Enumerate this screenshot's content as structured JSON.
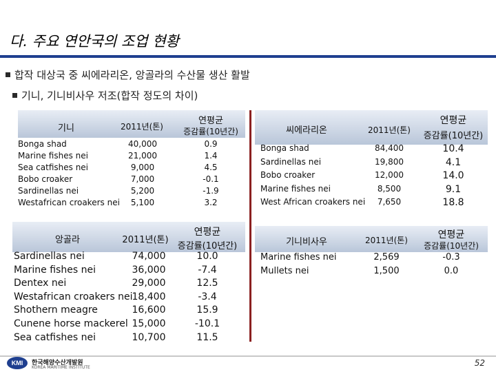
{
  "title": "다. 주요 연안국의 조업 현황",
  "bullets": [
    "합작 대상국 중 씨에라리온, 앙골라의 수산물 생산 활발",
    "기니, 기니비사우 저조(합작 정도의 차이)"
  ],
  "guinea": {
    "name": "기니",
    "col_prod": "2011년(톤)",
    "col_growth": [
      "연평균",
      "증감률(10년간)"
    ],
    "rows": [
      {
        "species": "Bonga shad",
        "prod": "40,000",
        "growth": "0.9"
      },
      {
        "species": "Marine fishes nei",
        "prod": "21,000",
        "growth": "1.4"
      },
      {
        "species": "Sea catfishes nei",
        "prod": "9,000",
        "growth": "4.5"
      },
      {
        "species": "Bobo croaker",
        "prod": "7,000",
        "growth": "-0.1"
      },
      {
        "species": "Sardinellas nei",
        "prod": "5,200",
        "growth": "-1.9"
      },
      {
        "species": "Westafrican croakers nei",
        "prod": "5,100",
        "growth": "3.2"
      }
    ]
  },
  "sierra": {
    "name": "씨에라리온",
    "col_prod": "2011년(톤)",
    "col_growth": [
      "연평균",
      "증감률(10년간)"
    ],
    "rows": [
      {
        "species": "Bonga shad",
        "prod": "84,400",
        "growth": "10.4"
      },
      {
        "species": "Sardinellas nei",
        "prod": "19,800",
        "growth": "4.1"
      },
      {
        "species": "Bobo croaker",
        "prod": "12,000",
        "growth": "14.0"
      },
      {
        "species": "Marine fishes nei",
        "prod": "8,500",
        "growth": "9.1"
      },
      {
        "species": "West African croakers nei",
        "prod": "7,650",
        "growth": "18.8"
      }
    ]
  },
  "angola": {
    "name": "앙골라",
    "col_prod": "2011년(톤)",
    "col_growth": [
      "연평균",
      "증감률(10년간)"
    ],
    "rows": [
      {
        "species": "Sardinellas nei",
        "prod": "74,000",
        "growth": "10.0"
      },
      {
        "species": "Marine fishes nei",
        "prod": "36,000",
        "growth": "-7.4"
      },
      {
        "species": "Dentex nei",
        "prod": "29,000",
        "growth": "12.5"
      },
      {
        "species": "Westafrican croakers nei",
        "prod": "18,400",
        "growth": "-3.4"
      },
      {
        "species": "Shothern meagre",
        "prod": "16,600",
        "growth": "15.9"
      },
      {
        "species": "Cunene horse mackerel",
        "prod": "15,000",
        "growth": "-10.1"
      },
      {
        "species": "Sea catfishes nei",
        "prod": "10,700",
        "growth": "11.5"
      }
    ]
  },
  "bissau": {
    "name": "기니비사우",
    "col_prod": "2011년(톤)",
    "col_growth": [
      "연평균",
      "증감률(10년간)"
    ],
    "rows": [
      {
        "species": "Marine fishes nei",
        "prod": "2,569",
        "growth": "-0.3"
      },
      {
        "species": "Mullets nei",
        "prod": "1,500",
        "growth": "0.0"
      }
    ]
  },
  "footer": {
    "logo_mark": "KMI",
    "org_name": "한국해양수산개발원",
    "org_name_en": "KOREA MARITIME INSTITUTE",
    "page": "52"
  }
}
